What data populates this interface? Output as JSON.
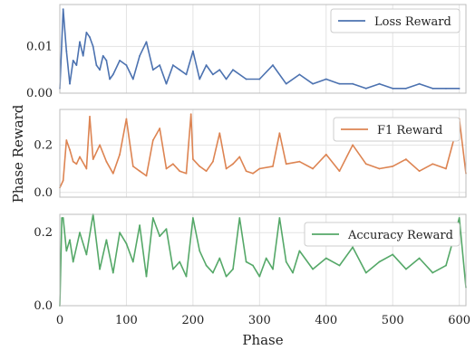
{
  "figure": {
    "xlabel": "Phase",
    "ylabel": "Phase Reward",
    "x_ticks": [
      0,
      100,
      200,
      300,
      400,
      500,
      600
    ],
    "xlim": [
      0,
      610
    ]
  },
  "chart_data": [
    {
      "type": "line",
      "series": [
        {
          "name": "Loss Reward",
          "color": "#4c72b0"
        }
      ],
      "ylim": [
        0,
        0.019
      ],
      "y_ticks": [
        0.0,
        0.01
      ],
      "y_tick_labels": [
        "0.00",
        "0.01"
      ],
      "grid": true,
      "legend": "top-right",
      "x": [
        0,
        5,
        10,
        15,
        20,
        25,
        30,
        35,
        40,
        45,
        50,
        55,
        60,
        65,
        70,
        75,
        80,
        90,
        100,
        110,
        120,
        130,
        140,
        150,
        160,
        170,
        180,
        190,
        200,
        210,
        220,
        230,
        240,
        250,
        260,
        280,
        300,
        320,
        340,
        360,
        380,
        400,
        420,
        440,
        460,
        480,
        500,
        520,
        540,
        560,
        580,
        600
      ],
      "y": [
        0.001,
        0.018,
        0.009,
        0.002,
        0.007,
        0.006,
        0.011,
        0.008,
        0.013,
        0.012,
        0.01,
        0.006,
        0.005,
        0.008,
        0.007,
        0.003,
        0.004,
        0.007,
        0.006,
        0.003,
        0.008,
        0.011,
        0.005,
        0.006,
        0.002,
        0.006,
        0.005,
        0.004,
        0.009,
        0.003,
        0.006,
        0.004,
        0.005,
        0.003,
        0.005,
        0.003,
        0.003,
        0.006,
        0.002,
        0.004,
        0.002,
        0.003,
        0.002,
        0.002,
        0.001,
        0.002,
        0.001,
        0.001,
        0.002,
        0.001,
        0.001,
        0.001
      ]
    },
    {
      "type": "line",
      "series": [
        {
          "name": "F1 Reward",
          "color": "#dd8452"
        }
      ],
      "ylim": [
        -0.02,
        0.35
      ],
      "y_ticks": [
        0.0,
        0.2
      ],
      "y_tick_labels": [
        "0.0",
        "0.2"
      ],
      "grid": true,
      "legend": "top-right",
      "x": [
        0,
        5,
        10,
        15,
        20,
        25,
        30,
        40,
        45,
        50,
        60,
        70,
        80,
        90,
        100,
        110,
        120,
        130,
        140,
        150,
        160,
        170,
        180,
        190,
        197,
        200,
        210,
        220,
        230,
        240,
        250,
        260,
        270,
        280,
        290,
        300,
        320,
        330,
        340,
        360,
        380,
        400,
        420,
        440,
        460,
        480,
        500,
        520,
        540,
        560,
        580,
        600,
        610
      ],
      "y": [
        0.02,
        0.05,
        0.22,
        0.18,
        0.13,
        0.12,
        0.15,
        0.1,
        0.32,
        0.14,
        0.2,
        0.13,
        0.08,
        0.16,
        0.31,
        0.11,
        0.09,
        0.07,
        0.22,
        0.27,
        0.1,
        0.12,
        0.09,
        0.08,
        0.33,
        0.14,
        0.11,
        0.09,
        0.13,
        0.25,
        0.1,
        0.12,
        0.15,
        0.09,
        0.08,
        0.1,
        0.11,
        0.25,
        0.12,
        0.13,
        0.1,
        0.16,
        0.09,
        0.2,
        0.12,
        0.1,
        0.11,
        0.14,
        0.09,
        0.12,
        0.1,
        0.31,
        0.08
      ]
    },
    {
      "type": "line",
      "series": [
        {
          "name": "Accuracy Reward",
          "color": "#55a868"
        }
      ],
      "ylim": [
        0,
        0.25
      ],
      "y_ticks": [
        0.0,
        0.2
      ],
      "y_tick_labels": [
        "0.0",
        "0.2"
      ],
      "grid": true,
      "legend": "top-right",
      "x": [
        0,
        3,
        5,
        10,
        15,
        20,
        30,
        40,
        50,
        60,
        70,
        80,
        90,
        100,
        110,
        120,
        130,
        140,
        150,
        160,
        170,
        180,
        190,
        200,
        210,
        220,
        230,
        240,
        250,
        260,
        270,
        280,
        290,
        300,
        310,
        320,
        330,
        340,
        350,
        360,
        380,
        400,
        420,
        440,
        460,
        480,
        500,
        520,
        540,
        560,
        580,
        600,
        610
      ],
      "y": [
        0.0,
        0.24,
        0.24,
        0.15,
        0.18,
        0.12,
        0.2,
        0.14,
        0.25,
        0.1,
        0.18,
        0.09,
        0.2,
        0.17,
        0.12,
        0.22,
        0.08,
        0.24,
        0.19,
        0.21,
        0.1,
        0.12,
        0.08,
        0.24,
        0.15,
        0.11,
        0.09,
        0.13,
        0.08,
        0.1,
        0.24,
        0.12,
        0.11,
        0.08,
        0.13,
        0.1,
        0.24,
        0.12,
        0.09,
        0.15,
        0.1,
        0.13,
        0.11,
        0.16,
        0.09,
        0.12,
        0.14,
        0.1,
        0.13,
        0.09,
        0.11,
        0.24,
        0.05
      ]
    }
  ]
}
